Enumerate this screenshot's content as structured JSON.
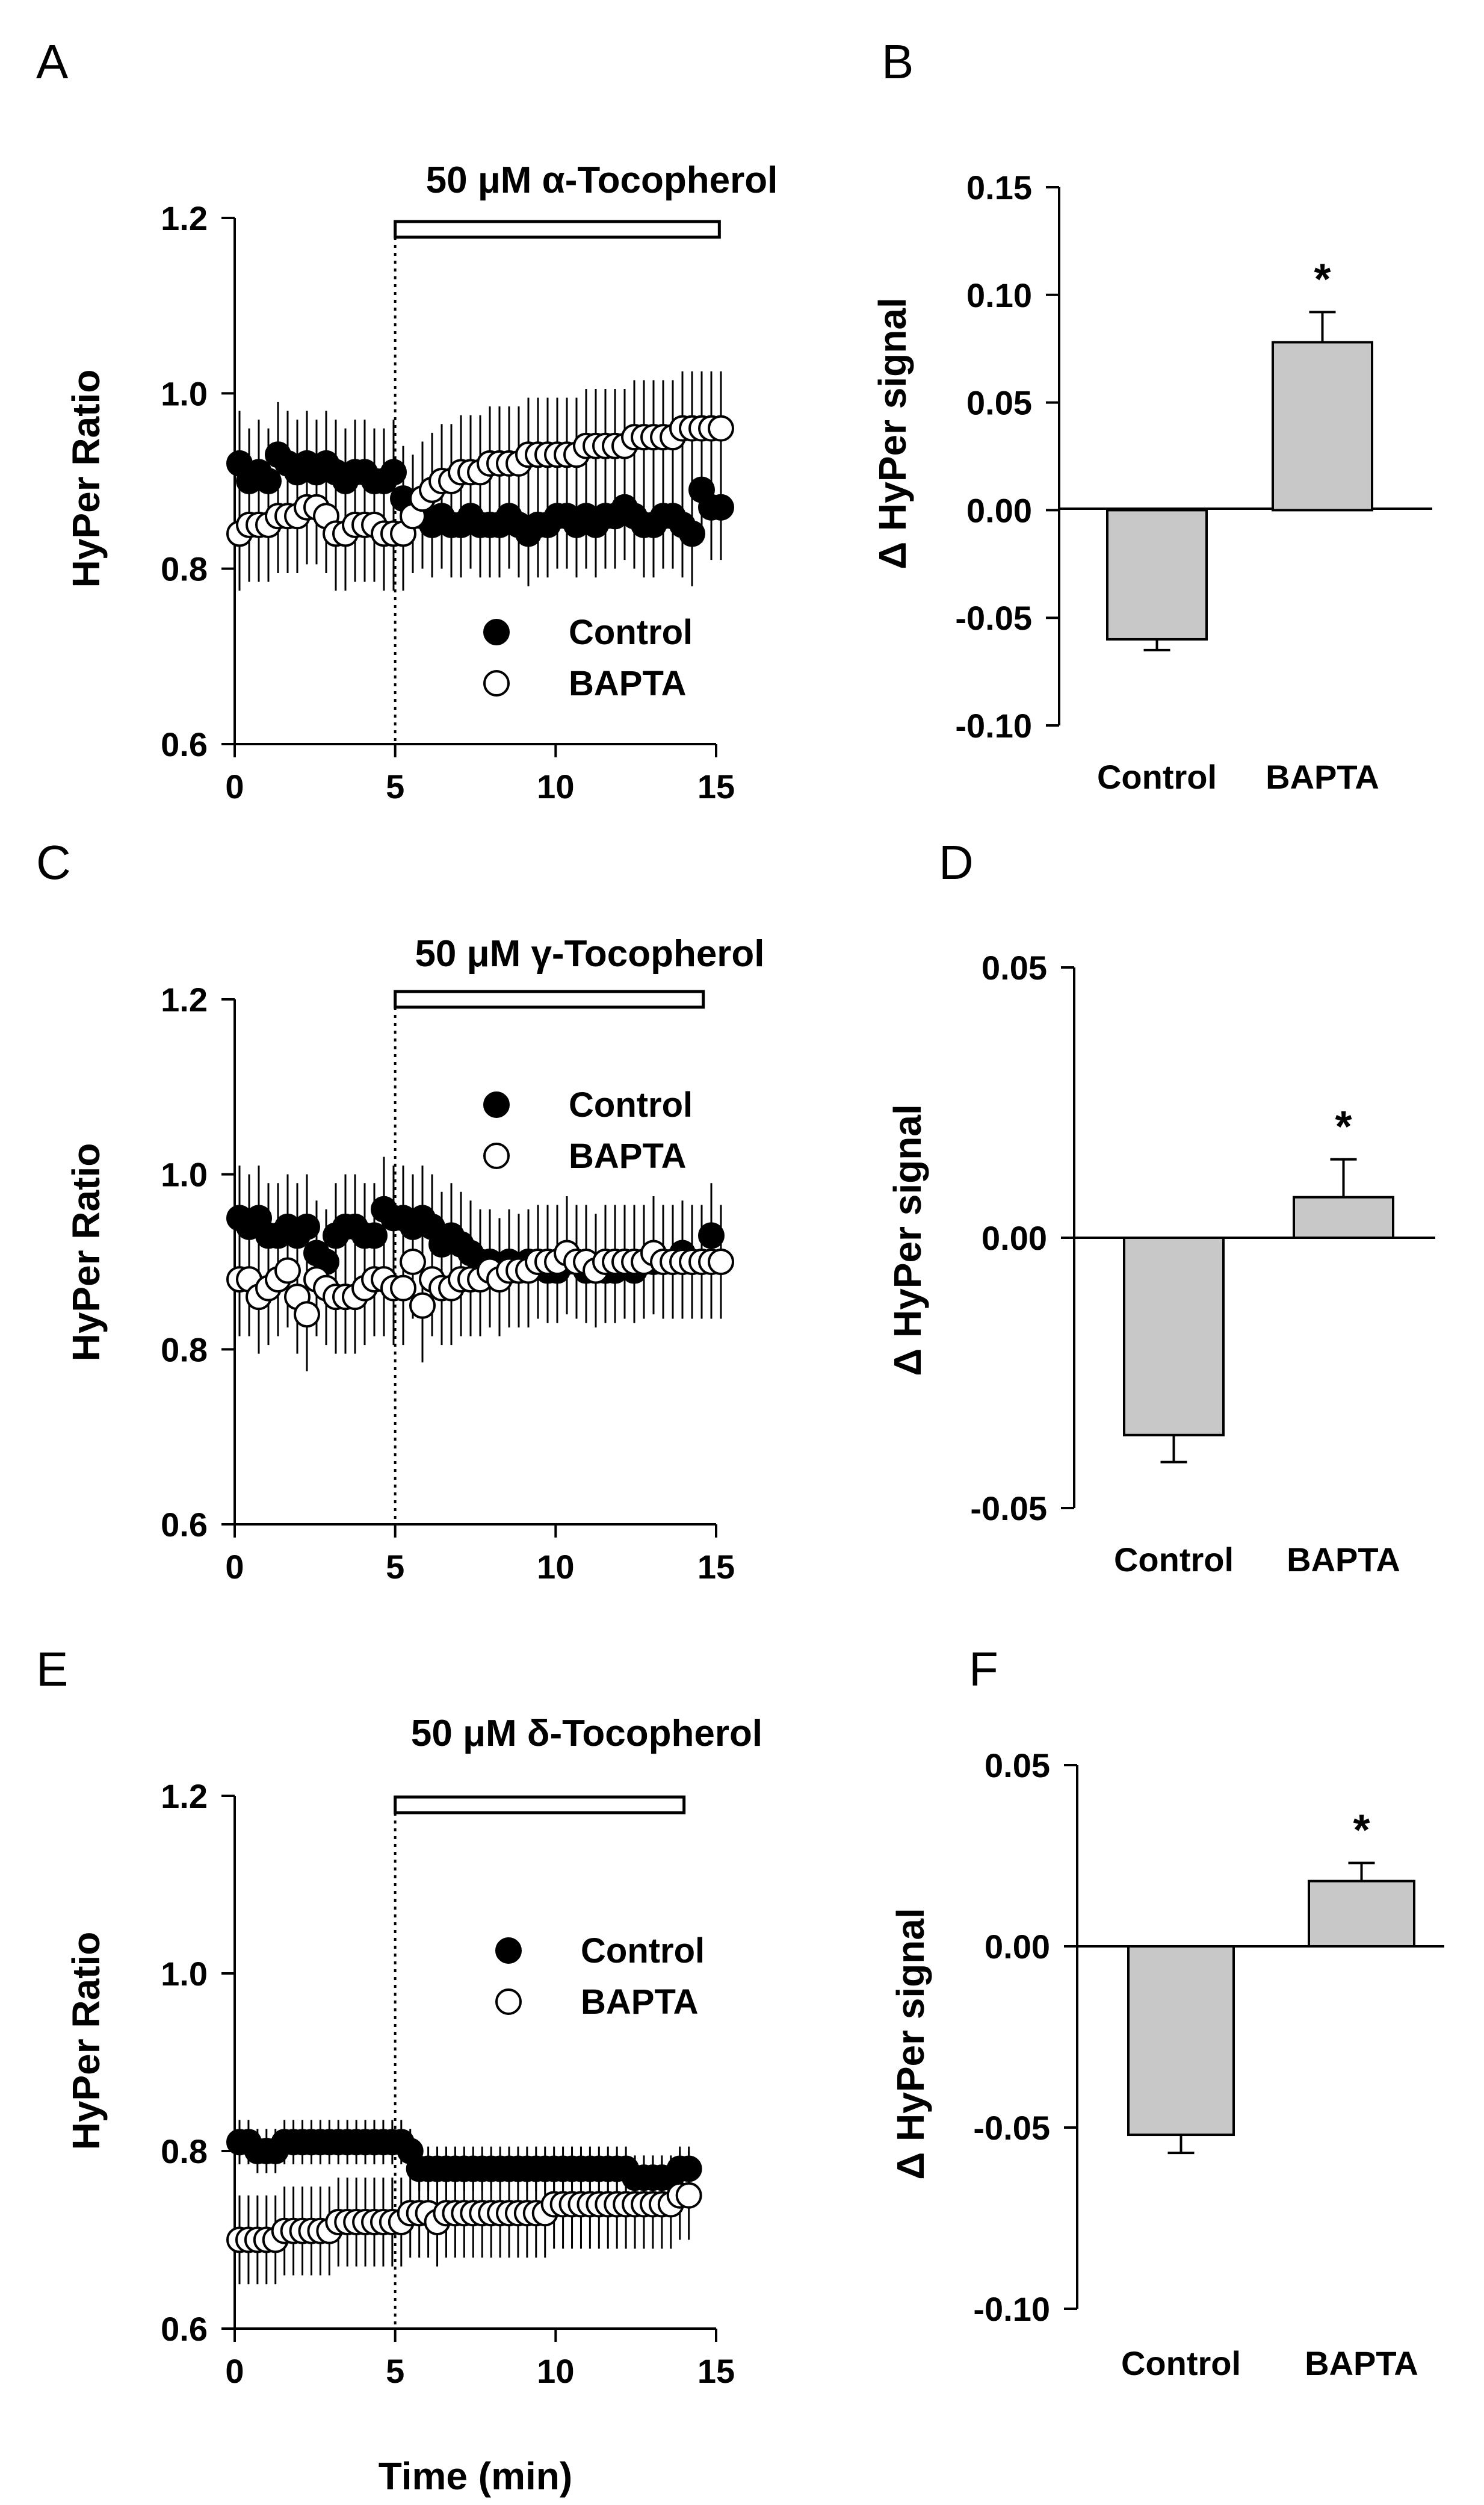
{
  "figure": {
    "time_axis_label": "Time (min)"
  },
  "chart_data": [
    {
      "panel": "A",
      "type": "scatter",
      "title": "50 μM α-Tocopherol",
      "xlabel": "",
      "ylabel": "HyPer Ratio",
      "xlim": [
        0,
        15
      ],
      "ylim": [
        0.6,
        1.2
      ],
      "xticks": [
        0,
        5,
        10,
        15
      ],
      "yticks": [
        0.6,
        0.8,
        1.0,
        1.2
      ],
      "x_tick_labels": [
        "0",
        "5",
        "10",
        "15"
      ],
      "y_tick_labels": [
        "0.6",
        "0.8",
        "1.0",
        "1.2"
      ],
      "treatment_start": 5,
      "treatment_bar": [
        5,
        15.1
      ],
      "legend": [
        "Control",
        "BAPTA"
      ],
      "series": [
        {
          "name": "Control",
          "marker": "filled",
          "x_start": 0.15,
          "x_step": 0.3,
          "values": [
            0.92,
            0.9,
            0.91,
            0.9,
            0.93,
            0.92,
            0.91,
            0.92,
            0.91,
            0.92,
            0.91,
            0.9,
            0.91,
            0.91,
            0.9,
            0.9,
            0.91,
            0.88,
            0.87,
            0.86,
            0.85,
            0.86,
            0.85,
            0.85,
            0.86,
            0.85,
            0.85,
            0.85,
            0.86,
            0.85,
            0.84,
            0.85,
            0.85,
            0.86,
            0.86,
            0.85,
            0.86,
            0.85,
            0.86,
            0.86,
            0.87,
            0.86,
            0.85,
            0.85,
            0.86,
            0.86,
            0.85,
            0.84,
            0.89,
            0.87,
            0.87
          ],
          "error": 0.06
        },
        {
          "name": "BAPTA",
          "marker": "open",
          "x_start": 0.15,
          "x_step": 0.3,
          "values": [
            0.84,
            0.85,
            0.85,
            0.85,
            0.86,
            0.86,
            0.86,
            0.87,
            0.87,
            0.86,
            0.84,
            0.84,
            0.85,
            0.85,
            0.85,
            0.84,
            0.84,
            0.84,
            0.86,
            0.88,
            0.89,
            0.9,
            0.9,
            0.91,
            0.91,
            0.91,
            0.92,
            0.92,
            0.92,
            0.92,
            0.93,
            0.93,
            0.93,
            0.93,
            0.93,
            0.93,
            0.94,
            0.94,
            0.94,
            0.94,
            0.94,
            0.95,
            0.95,
            0.95,
            0.95,
            0.95,
            0.96,
            0.96,
            0.96,
            0.96,
            0.96
          ],
          "error": 0.065
        }
      ]
    },
    {
      "panel": "B",
      "type": "bar",
      "title": "",
      "xlabel": "",
      "ylabel": "Δ HyPer signal",
      "categories": [
        "Control",
        "BAPTA"
      ],
      "values": [
        -0.06,
        0.078
      ],
      "errors": [
        0.005,
        0.014
      ],
      "significance": [
        "",
        "*"
      ],
      "ylim": [
        -0.1,
        0.15
      ],
      "yticks": [
        -0.1,
        -0.05,
        0.0,
        0.05,
        0.1,
        0.15
      ],
      "y_tick_labels": [
        "-0.10",
        "-0.05",
        "0.00",
        "0.05",
        "0.10",
        "0.15"
      ]
    },
    {
      "panel": "C",
      "type": "scatter",
      "title": "50 μM γ-Tocopherol",
      "xlabel": "",
      "ylabel": "HyPer Ratio",
      "xlim": [
        0,
        15
      ],
      "ylim": [
        0.6,
        1.2
      ],
      "xticks": [
        0,
        5,
        10,
        15
      ],
      "yticks": [
        0.6,
        0.8,
        1.0,
        1.2
      ],
      "x_tick_labels": [
        "0",
        "5",
        "10",
        "15"
      ],
      "y_tick_labels": [
        "0.6",
        "0.8",
        "1.0",
        "1.2"
      ],
      "treatment_start": 5,
      "treatment_bar": [
        5,
        14.6
      ],
      "legend": [
        "Control",
        "BAPTA"
      ],
      "series": [
        {
          "name": "Control",
          "marker": "filled",
          "x_start": 0.15,
          "x_step": 0.3,
          "values": [
            0.95,
            0.94,
            0.95,
            0.93,
            0.93,
            0.94,
            0.93,
            0.94,
            0.91,
            0.9,
            0.93,
            0.94,
            0.94,
            0.93,
            0.93,
            0.96,
            0.95,
            0.95,
            0.94,
            0.95,
            0.94,
            0.92,
            0.93,
            0.92,
            0.91,
            0.9,
            0.9,
            0.89,
            0.9,
            0.89,
            0.9,
            0.9,
            0.89,
            0.89,
            0.9,
            0.9,
            0.89,
            0.89,
            0.89,
            0.89,
            0.9,
            0.89,
            0.9,
            0.9,
            0.9,
            0.9,
            0.91,
            0.9,
            0.9,
            0.93,
            0.9
          ],
          "error": 0.06
        },
        {
          "name": "BAPTA",
          "marker": "open",
          "x_start": 0.15,
          "x_step": 0.3,
          "values": [
            0.88,
            0.88,
            0.86,
            0.87,
            0.88,
            0.89,
            0.86,
            0.84,
            0.88,
            0.87,
            0.86,
            0.86,
            0.86,
            0.87,
            0.88,
            0.88,
            0.87,
            0.87,
            0.9,
            0.85,
            0.88,
            0.87,
            0.87,
            0.88,
            0.88,
            0.88,
            0.89,
            0.88,
            0.89,
            0.89,
            0.89,
            0.9,
            0.9,
            0.9,
            0.91,
            0.9,
            0.9,
            0.89,
            0.9,
            0.9,
            0.9,
            0.9,
            0.9,
            0.91,
            0.9,
            0.9,
            0.9,
            0.9,
            0.9,
            0.9,
            0.9
          ],
          "error": 0.065
        }
      ]
    },
    {
      "panel": "D",
      "type": "bar",
      "title": "",
      "xlabel": "",
      "ylabel": "Δ HyPer signal",
      "categories": [
        "Control",
        "BAPTA"
      ],
      "values": [
        -0.0365,
        0.0075
      ],
      "errors": [
        0.005,
        0.007
      ],
      "significance": [
        "",
        "*"
      ],
      "ylim": [
        -0.05,
        0.05
      ],
      "yticks": [
        -0.05,
        0.0,
        0.05
      ],
      "y_tick_labels": [
        "-0.05",
        "0.00",
        "0.05"
      ]
    },
    {
      "panel": "E",
      "type": "scatter",
      "title": "50 μM δ-Tocopherol",
      "xlabel": "Time (min)",
      "ylabel": "HyPer Ratio",
      "xlim": [
        0,
        15
      ],
      "ylim": [
        0.6,
        1.2
      ],
      "xticks": [
        0,
        5,
        10,
        15
      ],
      "yticks": [
        0.6,
        0.8,
        1.0,
        1.2
      ],
      "x_tick_labels": [
        "0",
        "5",
        "10",
        "15"
      ],
      "y_tick_labels": [
        "0.6",
        "0.8",
        "1.0",
        "1.2"
      ],
      "treatment_start": 5,
      "treatment_bar": [
        5,
        14.0
      ],
      "legend": [
        "Control",
        "BAPTA"
      ],
      "series": [
        {
          "name": "Control",
          "marker": "filled",
          "x_start": 0.15,
          "x_step": 0.28,
          "values": [
            0.81,
            0.81,
            0.8,
            0.8,
            0.8,
            0.81,
            0.81,
            0.81,
            0.81,
            0.81,
            0.81,
            0.81,
            0.81,
            0.81,
            0.81,
            0.81,
            0.81,
            0.81,
            0.81,
            0.8,
            0.78,
            0.78,
            0.78,
            0.78,
            0.78,
            0.78,
            0.78,
            0.78,
            0.78,
            0.78,
            0.78,
            0.78,
            0.78,
            0.78,
            0.78,
            0.78,
            0.78,
            0.78,
            0.78,
            0.78,
            0.78,
            0.78,
            0.78,
            0.78,
            0.77,
            0.77,
            0.77,
            0.77,
            0.77,
            0.78,
            0.78
          ],
          "error": 0.025
        },
        {
          "name": "BAPTA",
          "marker": "open",
          "x_start": 0.15,
          "x_step": 0.28,
          "values": [
            0.7,
            0.7,
            0.7,
            0.7,
            0.7,
            0.71,
            0.71,
            0.71,
            0.71,
            0.71,
            0.71,
            0.72,
            0.72,
            0.72,
            0.72,
            0.72,
            0.72,
            0.72,
            0.72,
            0.73,
            0.73,
            0.73,
            0.72,
            0.73,
            0.73,
            0.73,
            0.73,
            0.73,
            0.73,
            0.73,
            0.73,
            0.73,
            0.73,
            0.73,
            0.73,
            0.74,
            0.74,
            0.74,
            0.74,
            0.74,
            0.74,
            0.74,
            0.74,
            0.74,
            0.74,
            0.74,
            0.74,
            0.74,
            0.74,
            0.75,
            0.75
          ],
          "error": 0.05
        }
      ]
    },
    {
      "panel": "F",
      "type": "bar",
      "title": "",
      "xlabel": "",
      "ylabel": "Δ HyPer signal",
      "categories": [
        "Control",
        "BAPTA"
      ],
      "values": [
        -0.052,
        0.018
      ],
      "errors": [
        0.005,
        0.005
      ],
      "significance": [
        "",
        "*"
      ],
      "ylim": [
        -0.1,
        0.05
      ],
      "yticks": [
        -0.1,
        -0.05,
        0.0,
        0.05
      ],
      "y_tick_labels": [
        "-0.10",
        "-0.05",
        "0.00",
        "0.05"
      ]
    }
  ]
}
